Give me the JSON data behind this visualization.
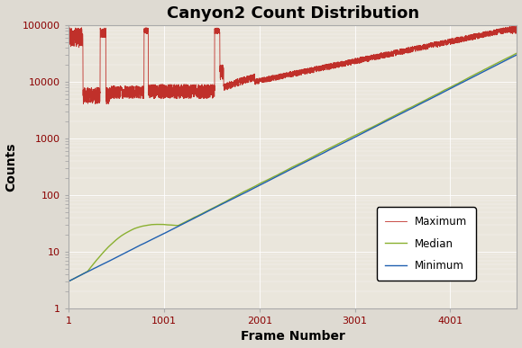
{
  "title": "Canyon2 Count Distribution",
  "xlabel": "Frame Number",
  "ylabel": "Counts",
  "background_color": "#dedad2",
  "plot_bg_color": "#eae6dc",
  "xlim": [
    1,
    4700
  ],
  "ylim": [
    1,
    100000
  ],
  "xticks": [
    1,
    1001,
    2001,
    3001,
    4001
  ],
  "yticks": [
    1,
    10,
    100,
    1000,
    10000,
    100000
  ],
  "ytick_labels": [
    "1",
    "10",
    "100",
    "1000",
    "10000",
    "100000"
  ],
  "legend_labels": [
    "Maximum",
    "Median",
    "Minimum"
  ],
  "max_color": "#c0302a",
  "median_color": "#8ab030",
  "min_color": "#2060b0",
  "n_frames": 4700
}
